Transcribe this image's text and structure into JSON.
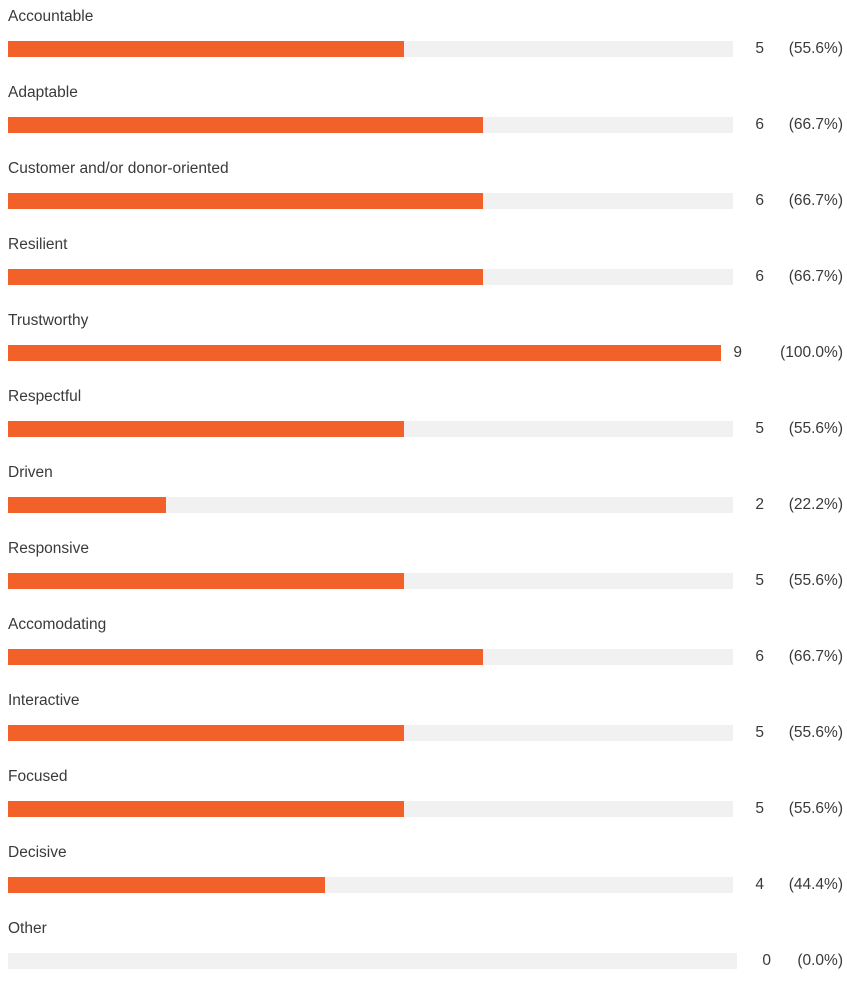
{
  "chart_data": {
    "type": "bar",
    "orientation": "horizontal",
    "categories": [
      "Accountable",
      "Adaptable",
      "Customer and/or donor-oriented",
      "Resilient",
      "Trustworthy",
      "Respectful",
      "Driven",
      "Responsive",
      "Accomodating",
      "Interactive",
      "Focused",
      "Decisive",
      "Other"
    ],
    "values": [
      5,
      6,
      6,
      6,
      9,
      5,
      2,
      5,
      6,
      5,
      5,
      4,
      0
    ],
    "percent_labels": [
      "(55.6%)",
      "(66.7%)",
      "(66.7%)",
      "(66.7%)",
      "(100.0%)",
      "(55.6%)",
      "(22.2%)",
      "(55.6%)",
      "(66.7%)",
      "(55.6%)",
      "(55.6%)",
      "(44.4%)",
      "(0.0%)"
    ],
    "xlim": [
      0,
      9
    ],
    "grid": false,
    "legend": "none",
    "colors": {
      "bar": "#f26129",
      "track": "#f1f1f1",
      "text": "#3a3a3a"
    }
  }
}
